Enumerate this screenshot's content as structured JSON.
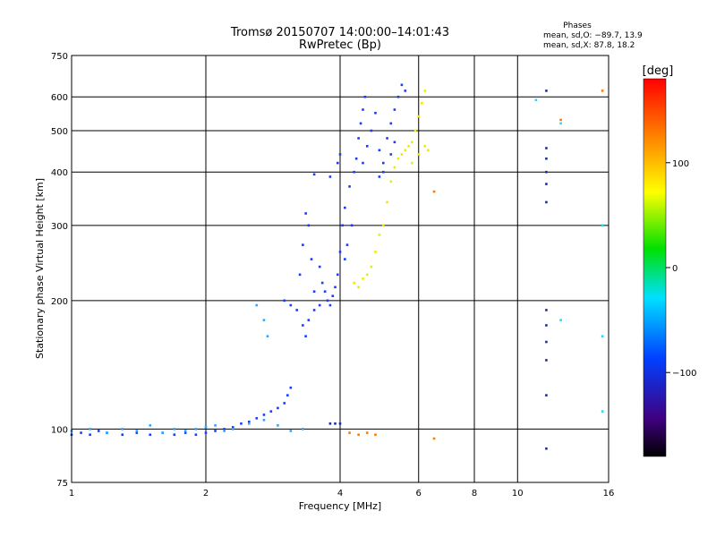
{
  "chart_data": {
    "type": "scatter",
    "title": "Tromsø 20150707 14:00:00–14:01:43",
    "subtitle": "RwPretec (Bp)",
    "xlabel": "Frequency [MHz]",
    "ylabel": "Stationary phase Virtual Height [km]",
    "x_scale": "log",
    "y_scale": "log",
    "xlim": [
      1,
      16
    ],
    "ylim": [
      75,
      750
    ],
    "x_ticks": [
      1,
      2,
      4,
      6,
      8,
      10,
      16
    ],
    "x_tick_labels": [
      "1",
      "2",
      "4",
      "6",
      "8",
      "10",
      "16"
    ],
    "y_ticks": [
      75,
      100,
      200,
      300,
      400,
      500,
      600,
      750
    ],
    "y_tick_labels": [
      "75",
      "100",
      "200",
      "300",
      "400",
      "500",
      "600",
      "750"
    ],
    "grid": true,
    "phases_box": {
      "title": "Phases",
      "line1": "mean, sd,O: −89.7, 13.9",
      "line2": "mean, sd,X:  87.8, 18.2"
    },
    "colorbar": {
      "label": "[deg]",
      "range": [
        -180,
        180
      ],
      "ticks": [
        100,
        0,
        -100
      ],
      "tick_labels": [
        "100",
        "0",
        "−100"
      ]
    },
    "series": [
      {
        "color": "#1a3cff",
        "points": [
          [
            1.0,
            97
          ],
          [
            1.05,
            98
          ],
          [
            1.1,
            97
          ],
          [
            1.15,
            99
          ],
          [
            1.2,
            98
          ],
          [
            1.3,
            97
          ],
          [
            1.4,
            98
          ],
          [
            1.5,
            97
          ],
          [
            1.6,
            98
          ],
          [
            1.7,
            97
          ],
          [
            1.8,
            98
          ],
          [
            1.9,
            97
          ],
          [
            2.0,
            98
          ],
          [
            2.1,
            99
          ],
          [
            2.2,
            100
          ],
          [
            2.3,
            101
          ],
          [
            2.4,
            103
          ],
          [
            2.5,
            104
          ],
          [
            2.6,
            106
          ],
          [
            2.7,
            108
          ],
          [
            2.8,
            110
          ],
          [
            2.9,
            112
          ],
          [
            3.0,
            115
          ],
          [
            3.05,
            120
          ],
          [
            3.1,
            125
          ],
          [
            3.0,
            200
          ],
          [
            3.1,
            195
          ],
          [
            3.2,
            190
          ],
          [
            3.25,
            230
          ],
          [
            3.3,
            270
          ],
          [
            3.35,
            320
          ],
          [
            3.3,
            175
          ],
          [
            3.35,
            165
          ],
          [
            3.4,
            180
          ],
          [
            3.4,
            300
          ],
          [
            3.45,
            250
          ],
          [
            3.5,
            210
          ],
          [
            3.5,
            190
          ],
          [
            3.6,
            195
          ],
          [
            3.6,
            240
          ],
          [
            3.65,
            220
          ],
          [
            3.7,
            210
          ],
          [
            3.75,
            200
          ],
          [
            3.8,
            195
          ],
          [
            3.85,
            205
          ],
          [
            3.9,
            215
          ],
          [
            3.95,
            230
          ],
          [
            4.0,
            260
          ],
          [
            4.05,
            300
          ],
          [
            4.1,
            250
          ],
          [
            4.1,
            330
          ],
          [
            4.15,
            270
          ],
          [
            4.2,
            370
          ],
          [
            4.25,
            300
          ],
          [
            4.3,
            400
          ],
          [
            4.35,
            430
          ],
          [
            4.4,
            480
          ],
          [
            4.45,
            520
          ],
          [
            4.5,
            560
          ],
          [
            4.55,
            600
          ],
          [
            4.5,
            420
          ],
          [
            4.6,
            460
          ],
          [
            4.7,
            500
          ],
          [
            4.8,
            550
          ],
          [
            4.9,
            450
          ],
          [
            5.0,
            420
          ],
          [
            5.1,
            480
          ],
          [
            5.2,
            520
          ],
          [
            5.3,
            560
          ],
          [
            5.4,
            600
          ],
          [
            5.5,
            640
          ],
          [
            5.6,
            620
          ],
          [
            5.2,
            440
          ],
          [
            5.3,
            470
          ],
          [
            5.0,
            400
          ],
          [
            4.9,
            390
          ],
          [
            4.0,
            440
          ],
          [
            3.95,
            420
          ],
          [
            3.8,
            390
          ],
          [
            3.5,
            395
          ]
        ]
      },
      {
        "color": "#2ea6ff",
        "points": [
          [
            1.0,
            99
          ],
          [
            1.1,
            100
          ],
          [
            1.2,
            98
          ],
          [
            1.3,
            100
          ],
          [
            1.4,
            99
          ],
          [
            1.5,
            102
          ],
          [
            1.6,
            98
          ],
          [
            1.7,
            100
          ],
          [
            1.8,
            99
          ],
          [
            1.9,
            100
          ],
          [
            2.0,
            101
          ],
          [
            2.1,
            102
          ],
          [
            2.2,
            99
          ],
          [
            2.3,
            100
          ],
          [
            2.5,
            103
          ],
          [
            2.7,
            105
          ],
          [
            2.9,
            102
          ],
          [
            3.1,
            99
          ],
          [
            3.3,
            100
          ],
          [
            2.6,
            195
          ],
          [
            2.7,
            180
          ],
          [
            2.75,
            165
          ]
        ]
      },
      {
        "color": "#ecec00",
        "points": [
          [
            4.3,
            220
          ],
          [
            4.4,
            215
          ],
          [
            4.5,
            225
          ],
          [
            4.6,
            230
          ],
          [
            4.7,
            240
          ],
          [
            4.8,
            260
          ],
          [
            4.9,
            285
          ],
          [
            5.0,
            300
          ],
          [
            5.1,
            340
          ],
          [
            5.2,
            380
          ],
          [
            5.3,
            410
          ],
          [
            5.4,
            430
          ],
          [
            5.5,
            440
          ],
          [
            5.6,
            450
          ],
          [
            5.7,
            460
          ],
          [
            5.8,
            470
          ],
          [
            5.9,
            500
          ],
          [
            6.0,
            540
          ],
          [
            6.1,
            580
          ],
          [
            6.2,
            620
          ],
          [
            6.3,
            450
          ],
          [
            5.8,
            420
          ],
          [
            6.0,
            440
          ],
          [
            6.2,
            460
          ]
        ]
      },
      {
        "color": "#ff7a00",
        "points": [
          [
            4.2,
            98
          ],
          [
            4.4,
            97
          ],
          [
            4.6,
            98
          ],
          [
            4.8,
            97
          ],
          [
            6.5,
            95
          ],
          [
            6.5,
            360
          ],
          [
            12.5,
            530
          ],
          [
            15.5,
            620
          ]
        ]
      },
      {
        "color": "#1a2ab0",
        "points": [
          [
            3.8,
            103
          ],
          [
            3.9,
            103
          ],
          [
            4.0,
            103
          ],
          [
            11.6,
            620
          ],
          [
            11.6,
            455
          ],
          [
            11.6,
            430
          ],
          [
            11.6,
            400
          ],
          [
            11.6,
            375
          ],
          [
            11.6,
            340
          ],
          [
            11.6,
            190
          ],
          [
            11.6,
            175
          ],
          [
            11.6,
            160
          ],
          [
            11.6,
            145
          ],
          [
            11.6,
            120
          ],
          [
            11.6,
            90
          ]
        ]
      },
      {
        "color": "#2bd4ff",
        "points": [
          [
            11.0,
            590
          ],
          [
            12.5,
            520
          ],
          [
            12.5,
            180
          ],
          [
            15.5,
            300
          ],
          [
            15.5,
            165
          ],
          [
            15.5,
            110
          ]
        ]
      }
    ]
  }
}
